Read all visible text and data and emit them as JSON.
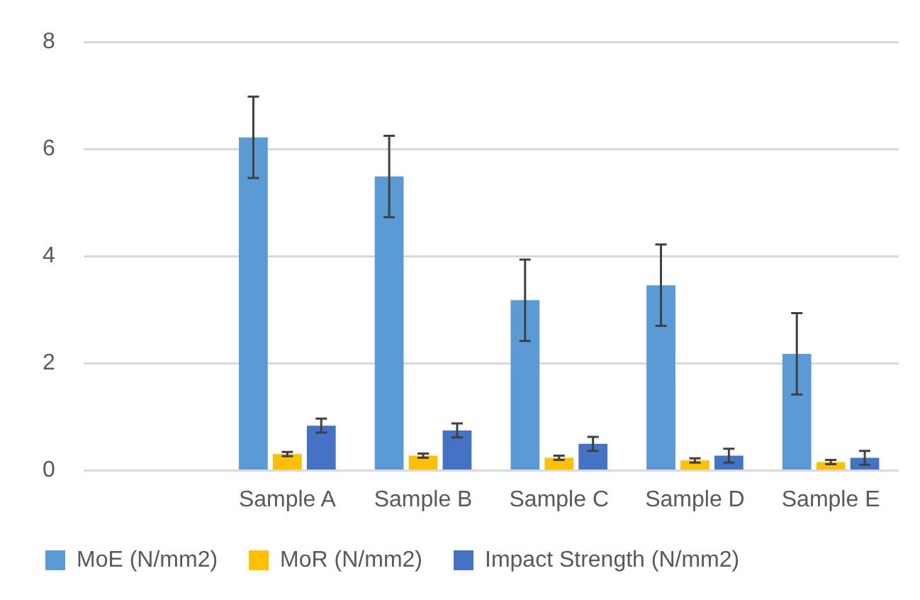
{
  "chart_data": {
    "type": "bar",
    "categories": [
      null,
      "Sample A",
      "Sample B",
      "Sample C",
      "Sample D",
      "Sample E"
    ],
    "series": [
      {
        "name": "MoE (N/mm2)",
        "color": "#5b9bd5",
        "values": [
          null,
          6.22,
          5.49,
          3.18,
          3.46,
          2.18
        ],
        "errors": [
          null,
          0.76,
          0.76,
          0.76,
          0.76,
          0.76
        ]
      },
      {
        "name": "MoR (N/mm2)",
        "color": "#ffc000",
        "values": [
          null,
          0.31,
          0.28,
          0.24,
          0.19,
          0.16
        ],
        "errors": [
          null,
          0.04,
          0.04,
          0.04,
          0.04,
          0.04
        ]
      },
      {
        "name": "Impact Strength (N/mm2)",
        "color": "#4472c4",
        "values": [
          null,
          0.84,
          0.75,
          0.5,
          0.28,
          0.24
        ],
        "errors": [
          null,
          0.13,
          0.13,
          0.13,
          0.13,
          0.13
        ]
      }
    ],
    "ylim": [
      0,
      8
    ],
    "yticks": [
      0,
      2,
      4,
      6,
      8
    ],
    "grid": "y",
    "legend": "bottom"
  }
}
